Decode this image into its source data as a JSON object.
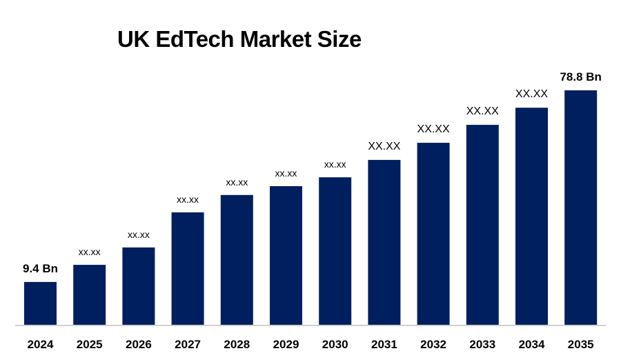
{
  "chart_data": {
    "type": "bar",
    "title": "UK EdTech Market Size",
    "xlabel": "",
    "ylabel": "",
    "categories": [
      "2024",
      "2025",
      "2026",
      "2027",
      "2028",
      "2029",
      "2030",
      "2031",
      "2032",
      "2033",
      "2034",
      "2035"
    ],
    "values": [
      9.4,
      15.6,
      21.9,
      34.6,
      40.9,
      44.1,
      47.3,
      53.6,
      59.8,
      66.3,
      72.5,
      78.8
    ],
    "data_labels": [
      "9.4 Bn",
      "xx.xx",
      "xx.xx",
      "xx.xx",
      "xx.xx",
      "xx.xx",
      "xx.xx",
      "XX.XX",
      "XX.XX",
      "XX.XX",
      "XX.XX",
      "78.8 Bn"
    ],
    "ylim": [
      -6.1,
      80
    ],
    "grid": false,
    "legend": "none",
    "bar_color": "#001f5f"
  }
}
